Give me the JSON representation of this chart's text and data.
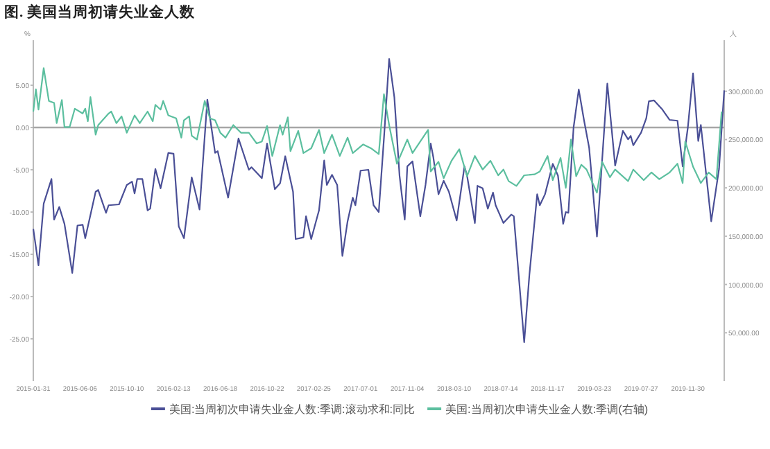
{
  "chart_data": {
    "type": "line",
    "title": "图. 美国当周初请失业金人数",
    "ylabel": "%",
    "y2label": "人",
    "legend": "bottom",
    "xlim": [
      "2015-01-31",
      "2020-03-07"
    ],
    "xticks": [
      "2015-01-31",
      "2015-06-06",
      "2015-10-10",
      "2016-02-13",
      "2016-06-18",
      "2016-10-22",
      "2017-02-25",
      "2017-07-01",
      "2017-11-04",
      "2018-03-10",
      "2018-07-14",
      "2018-11-17",
      "2019-03-23",
      "2019-07-27",
      "2019-11-30"
    ],
    "ylim": [
      -30,
      10
    ],
    "yticks": [
      {
        "value": 5,
        "label": "5.00"
      },
      {
        "value": 0,
        "label": "0.00"
      },
      {
        "value": -5,
        "label": "-5.00"
      },
      {
        "value": -10,
        "label": "-10.00"
      },
      {
        "value": -15,
        "label": "-15.00"
      },
      {
        "value": -20,
        "label": "-20.00"
      },
      {
        "value": -25,
        "label": "-25.00"
      }
    ],
    "y2lim": [
      0,
      350000
    ],
    "y2ticks": [
      {
        "value": 50000,
        "label": "50,000.00"
      },
      {
        "value": 100000,
        "label": "100,000.00"
      },
      {
        "value": 150000,
        "label": "150,000.00"
      },
      {
        "value": 200000,
        "label": "200,000.00"
      },
      {
        "value": 250000,
        "label": "250,000.00"
      },
      {
        "value": 300000,
        "label": "300,000.00"
      }
    ],
    "ref_lines": [
      {
        "axis": "y",
        "value": 0,
        "color": "#a6a6a6"
      }
    ],
    "series": [
      {
        "name": "美国:当周初次申请失业金人数:季调:滚动求和:同比",
        "color": "#4a4f96",
        "x": [
          "2015-01-31",
          "2015-02-14",
          "2015-02-28",
          "2015-03-21",
          "2015-03-28",
          "2015-04-11",
          "2015-04-25",
          "2015-05-16",
          "2015-05-30",
          "2015-06-13",
          "2015-06-20",
          "2015-07-18",
          "2015-07-25",
          "2015-08-15",
          "2015-08-22",
          "2015-09-19",
          "2015-10-10",
          "2015-10-24",
          "2015-10-31",
          "2015-11-07",
          "2015-11-21",
          "2015-12-05",
          "2015-12-12",
          "2015-12-26",
          "2016-01-09",
          "2016-01-30",
          "2016-02-13",
          "2016-02-27",
          "2016-03-12",
          "2016-04-02",
          "2016-04-23",
          "2016-05-14",
          "2016-06-04",
          "2016-06-11",
          "2016-07-09",
          "2016-08-06",
          "2016-09-03",
          "2016-09-10",
          "2016-10-08",
          "2016-10-22",
          "2016-11-12",
          "2016-11-26",
          "2016-12-10",
          "2016-12-31",
          "2017-01-07",
          "2017-01-28",
          "2017-02-04",
          "2017-02-18",
          "2017-03-11",
          "2017-03-25",
          "2017-04-01",
          "2017-04-15",
          "2017-04-29",
          "2017-05-13",
          "2017-05-27",
          "2017-06-10",
          "2017-06-17",
          "2017-07-01",
          "2017-07-22",
          "2017-08-05",
          "2017-08-19",
          "2017-09-02",
          "2017-09-16",
          "2017-09-30",
          "2017-10-14",
          "2017-10-28",
          "2017-11-04",
          "2017-11-18",
          "2017-12-09",
          "2017-12-23",
          "2018-01-06",
          "2018-01-13",
          "2018-01-27",
          "2018-02-10",
          "2018-02-24",
          "2018-03-17",
          "2018-04-07",
          "2018-04-14",
          "2018-05-05",
          "2018-05-12",
          "2018-05-26",
          "2018-06-09",
          "2018-06-23",
          "2018-06-30",
          "2018-07-21",
          "2018-08-11",
          "2018-08-18",
          "2018-09-15",
          "2018-09-29",
          "2018-10-20",
          "2018-10-27",
          "2018-11-10",
          "2018-12-01",
          "2018-12-15",
          "2018-12-29",
          "2019-01-05",
          "2019-01-12",
          "2019-01-26",
          "2019-02-09",
          "2019-02-23",
          "2019-03-09",
          "2019-03-30",
          "2019-04-27",
          "2019-05-18",
          "2019-06-08",
          "2019-06-22",
          "2019-06-29",
          "2019-07-06",
          "2019-07-27",
          "2019-08-10",
          "2019-08-17",
          "2019-08-31",
          "2019-09-21",
          "2019-10-12",
          "2019-11-02",
          "2019-11-16",
          "2019-11-30",
          "2019-12-14",
          "2019-12-28",
          "2020-01-04",
          "2020-02-01",
          "2020-02-22",
          "2020-03-07"
        ],
        "values": [
          -12.0,
          -16.3,
          -9.0,
          -6.1,
          -10.9,
          -9.4,
          -11.4,
          -17.2,
          -11.6,
          -11.5,
          -13.1,
          -7.6,
          -7.4,
          -10.1,
          -9.2,
          -9.1,
          -6.8,
          -6.4,
          -7.8,
          -6.1,
          -6.1,
          -9.8,
          -9.6,
          -4.9,
          -7.2,
          -3.0,
          -3.1,
          -11.7,
          -13.1,
          -5.9,
          -9.7,
          3.3,
          -3.0,
          -2.8,
          -8.3,
          -1.3,
          -5.0,
          -4.7,
          -6.0,
          -1.9,
          -7.3,
          -6.6,
          -3.4,
          -7.6,
          -13.2,
          -13.0,
          -10.5,
          -13.2,
          -9.8,
          -3.9,
          -6.8,
          -5.6,
          -6.8,
          -15.2,
          -11.1,
          -8.3,
          -9.2,
          -5.1,
          -5.0,
          -9.2,
          -10.0,
          -1.3,
          8.1,
          3.6,
          -5.7,
          -10.9,
          -4.6,
          -4.0,
          -10.5,
          -6.8,
          -1.9,
          -3.5,
          -7.9,
          -6.3,
          -7.6,
          -11.0,
          -4.6,
          -5.7,
          -11.3,
          -6.9,
          -7.2,
          -9.6,
          -7.7,
          -9.2,
          -11.3,
          -10.3,
          -10.5,
          -25.4,
          -17.4,
          -7.9,
          -9.2,
          -7.9,
          -4.3,
          -5.7,
          -11.4,
          -10.0,
          -10.1,
          0.0,
          4.5,
          0.9,
          -2.4,
          -12.9,
          5.2,
          -4.5,
          -0.4,
          -1.4,
          -1.0,
          -2.1,
          -0.6,
          1.1,
          3.1,
          3.2,
          2.2,
          0.9,
          0.8,
          -4.6,
          0.0,
          6.4,
          -1.6,
          0.3,
          -11.1,
          -4.9,
          4.4
        ]
      },
      {
        "name": "美国:当周初次申请失业金人数:季调(右轴)",
        "color": "#5cbf9f",
        "axis": "y2",
        "x": [
          "2015-01-31",
          "2015-02-07",
          "2015-02-14",
          "2015-02-28",
          "2015-03-14",
          "2015-03-28",
          "2015-04-04",
          "2015-04-18",
          "2015-04-25",
          "2015-05-09",
          "2015-05-23",
          "2015-06-13",
          "2015-06-20",
          "2015-06-27",
          "2015-07-04",
          "2015-07-18",
          "2015-07-25",
          "2015-08-22",
          "2015-08-29",
          "2015-09-12",
          "2015-09-26",
          "2015-10-10",
          "2015-10-31",
          "2015-11-14",
          "2015-12-05",
          "2015-12-19",
          "2015-12-26",
          "2016-01-09",
          "2016-01-16",
          "2016-01-30",
          "2016-02-20",
          "2016-03-05",
          "2016-03-12",
          "2016-03-26",
          "2016-04-02",
          "2016-04-16",
          "2016-05-07",
          "2016-05-21",
          "2016-06-04",
          "2016-06-18",
          "2016-07-02",
          "2016-07-23",
          "2016-08-13",
          "2016-09-03",
          "2016-09-24",
          "2016-10-08",
          "2016-10-22",
          "2016-11-05",
          "2016-11-26",
          "2016-12-03",
          "2016-12-17",
          "2016-12-24",
          "2017-01-14",
          "2017-01-28",
          "2017-02-18",
          "2017-03-11",
          "2017-03-25",
          "2017-04-15",
          "2017-05-06",
          "2017-05-27",
          "2017-06-10",
          "2017-07-08",
          "2017-07-29",
          "2017-08-19",
          "2017-09-02",
          "2017-09-16",
          "2017-10-07",
          "2017-11-04",
          "2017-11-18",
          "2017-12-30",
          "2018-01-06",
          "2018-01-27",
          "2018-02-10",
          "2018-03-03",
          "2018-03-24",
          "2018-04-14",
          "2018-05-05",
          "2018-05-26",
          "2018-06-16",
          "2018-07-07",
          "2018-07-21",
          "2018-08-04",
          "2018-08-25",
          "2018-09-15",
          "2018-10-13",
          "2018-10-27",
          "2018-11-17",
          "2018-12-01",
          "2018-12-22",
          "2019-01-05",
          "2019-01-19",
          "2019-02-02",
          "2019-02-16",
          "2019-03-02",
          "2019-03-30",
          "2019-04-13",
          "2019-05-04",
          "2019-05-18",
          "2019-06-22",
          "2019-07-06",
          "2019-08-03",
          "2019-08-24",
          "2019-09-14",
          "2019-10-12",
          "2019-11-02",
          "2019-11-16",
          "2019-11-23",
          "2019-12-14",
          "2020-01-04",
          "2020-01-25",
          "2020-02-15",
          "2020-02-29"
        ],
        "values": [
          279000,
          302000,
          281000,
          324000,
          290000,
          288000,
          267000,
          291000,
          263000,
          263000,
          282000,
          277000,
          282000,
          269000,
          294000,
          255000,
          265000,
          277000,
          279000,
          267000,
          274000,
          257000,
          275000,
          267000,
          279000,
          269000,
          286000,
          281000,
          290000,
          275000,
          272000,
          252000,
          270000,
          274000,
          254000,
          250000,
          290000,
          272000,
          270000,
          257000,
          252000,
          265000,
          257000,
          257000,
          246000,
          248000,
          264000,
          233000,
          265000,
          255000,
          273000,
          238000,
          259000,
          236000,
          241000,
          260000,
          236000,
          255000,
          233000,
          252000,
          236000,
          245000,
          241000,
          235000,
          297000,
          265000,
          225000,
          250000,
          236000,
          260000,
          217000,
          227000,
          210000,
          228000,
          240000,
          212000,
          233000,
          219000,
          228000,
          213000,
          219000,
          207000,
          202000,
          213000,
          214000,
          217000,
          233000,
          208000,
          231000,
          200000,
          250000,
          212000,
          224000,
          219000,
          195000,
          227000,
          211000,
          219000,
          207000,
          219000,
          208000,
          216000,
          209000,
          216000,
          225000,
          205000,
          248000,
          222000,
          205000,
          216000,
          209000,
          279000
        ]
      }
    ]
  }
}
